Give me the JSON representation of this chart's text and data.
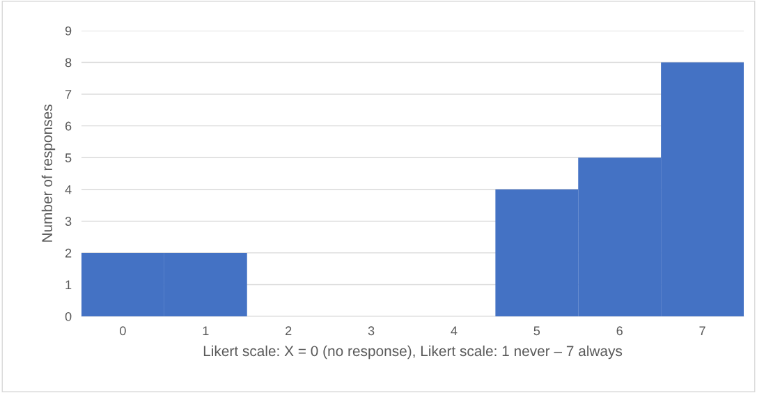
{
  "chart_data": {
    "type": "bar",
    "xlabel": "Likert scale: X = 0 (no response), Likert scale: 1 never – 7 always",
    "ylabel": "Number of responses",
    "categories": [
      "0",
      "1",
      "2",
      "3",
      "4",
      "5",
      "6",
      "7"
    ],
    "values": [
      2,
      2,
      0,
      0,
      0,
      4,
      5,
      8
    ],
    "color": "#4472c4",
    "ylim": [
      0,
      9
    ],
    "yticks": [
      0,
      1,
      2,
      3,
      4,
      5,
      6,
      7,
      8,
      9
    ],
    "grid": "y",
    "legend": false
  }
}
